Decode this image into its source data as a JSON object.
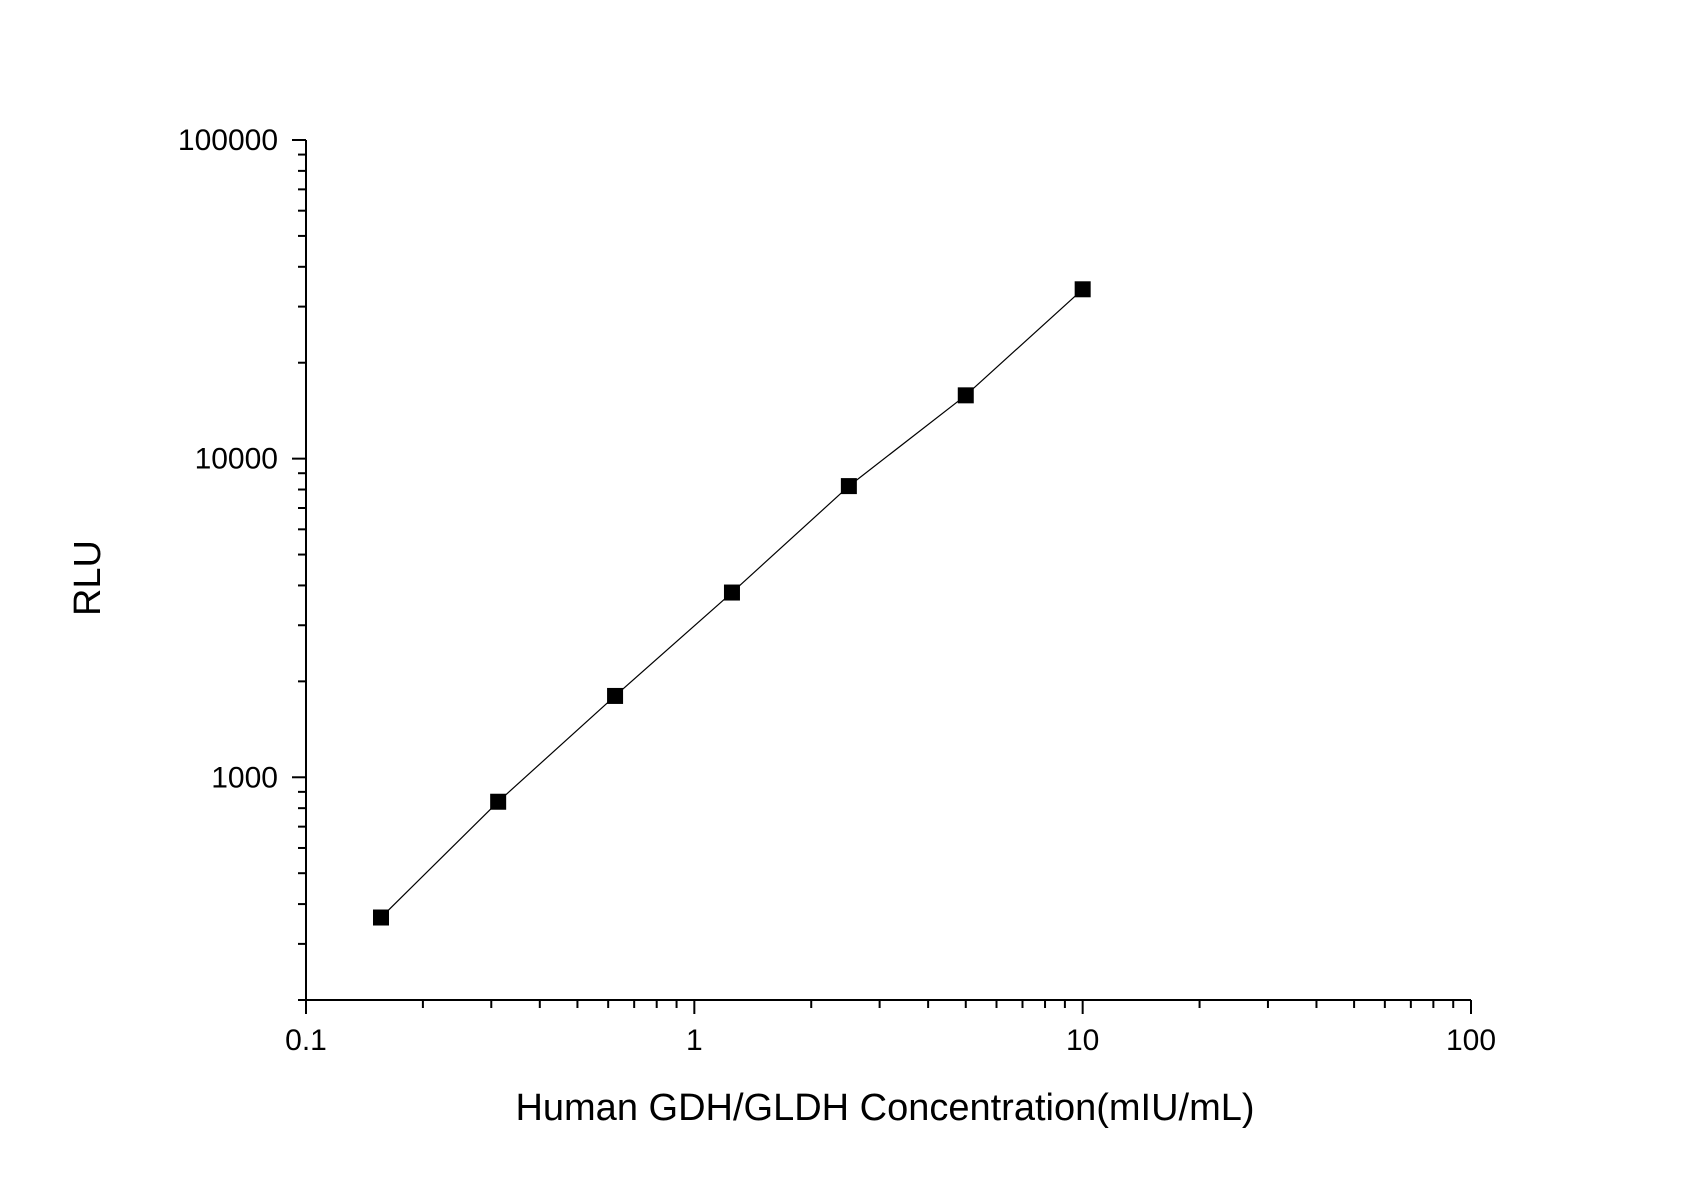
{
  "chart_data": {
    "type": "line",
    "xlabel": "Human GDH/GLDH Concentration(mIU/mL)",
    "ylabel": "RLU",
    "x_scale": "log",
    "y_scale": "log",
    "xlim": [
      0.1,
      100
    ],
    "ylim": [
      200,
      100000
    ],
    "x_ticks": [
      "0.1",
      "1",
      "10",
      "100"
    ],
    "y_ticks": [
      "1000",
      "10000",
      "100000"
    ],
    "grid": false,
    "series": [
      {
        "marker": "square",
        "x": [
          0.156,
          0.3125,
          0.625,
          1.25,
          2.5,
          5,
          10
        ],
        "y": [
          363,
          838,
          1800,
          3800,
          8200,
          15800,
          34000
        ]
      }
    ],
    "colors": {
      "line": "#000000",
      "marker": "#000000",
      "axis": "#000000"
    }
  }
}
